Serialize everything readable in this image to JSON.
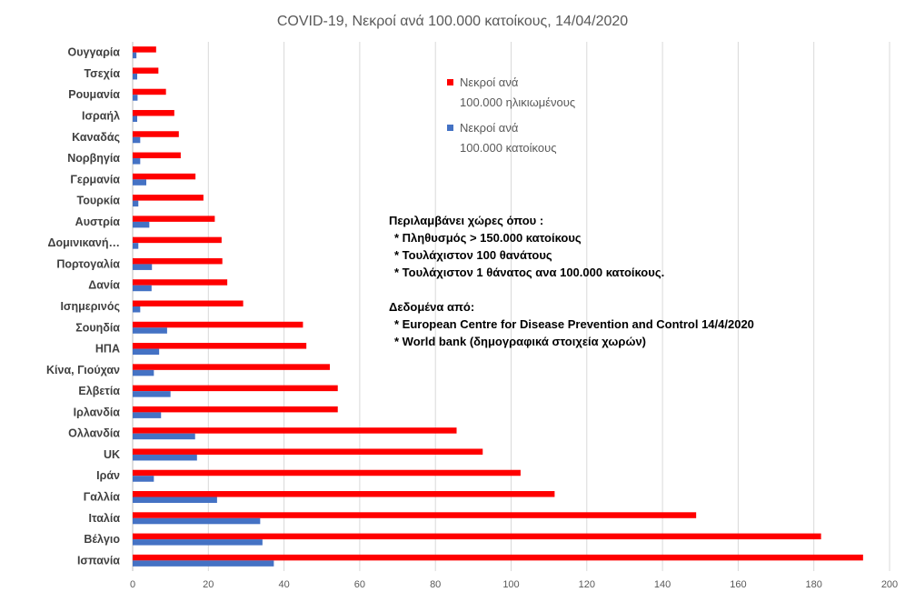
{
  "chart_data": {
    "type": "bar",
    "orientation": "horizontal",
    "title": "COVID-19, Νεκροί ανά 100.000 κατοίκους, 14/04/2020",
    "xlabel": "",
    "ylabel": "",
    "xlim": [
      0,
      200
    ],
    "xticks": [
      0,
      20,
      40,
      60,
      80,
      100,
      120,
      140,
      160,
      180,
      200
    ],
    "grid": true,
    "legend_position": "top-right",
    "categories": [
      "Ουγγαρία",
      "Τσεχία",
      "Ρουμανία",
      "Ισραήλ",
      "Καναδάς",
      "Νορβηγία",
      "Γερμανία",
      "Τουρκία",
      "Αυστρία",
      "Δομινικανή…",
      "Πορτογαλία",
      "Δανία",
      "Ισημερινός",
      "Σουηδία",
      "ΗΠΑ",
      "Κίνα, Γιούχαν",
      "Ελβετία",
      "Ιρλανδία",
      "Ολλανδία",
      "UK",
      "Ιράν",
      "Γαλλία",
      "Ιταλία",
      "Βέλγιο",
      "Ισπανία"
    ],
    "series": [
      {
        "name": "Νεκροί ανά 100.000 ηλικιωμένους",
        "name_lines": [
          "Νεκροί ανά",
          "100.000 ηλικιωμένους"
        ],
        "color": "#ff0000",
        "values": [
          6.2,
          6.8,
          8.8,
          11,
          12.2,
          12.7,
          16.6,
          18.7,
          21.7,
          23.5,
          23.7,
          25,
          29.2,
          45,
          45.9,
          52.1,
          54.2,
          54.2,
          85.6,
          92.5,
          102.5,
          111.5,
          148.9,
          181.9,
          193
        ]
      },
      {
        "name": "Νεκροί ανά 100.000 κατοίκους",
        "name_lines": [
          "Νεκροί ανά",
          "100.000 κατοίκους"
        ],
        "color": "#4472c4",
        "values": [
          1.0,
          1.2,
          1.3,
          1.2,
          2.0,
          2.0,
          3.6,
          1.5,
          4.4,
          1.5,
          5.1,
          5.0,
          2.0,
          9.1,
          7.0,
          5.6,
          10.0,
          7.5,
          16.5,
          17.0,
          5.6,
          22.3,
          33.7,
          34.3,
          37.3
        ]
      }
    ],
    "annotation": {
      "lines": [
        "Περιλαμβάνει χώρες όπου :",
        "* Πληθυσμός > 150.000 κατοίκους",
        "* Τουλάχιστον 100 θανάτους",
        "* Τουλάχιστον 1 θάνατος ανα 100.000 κατοίκους.",
        "",
        "Δεδομένα από:",
        "* European Centre for Disease Prevention and Control  14/4/2020",
        "* World bank (δημογραφικά στοιχεία χωρών)"
      ]
    }
  }
}
